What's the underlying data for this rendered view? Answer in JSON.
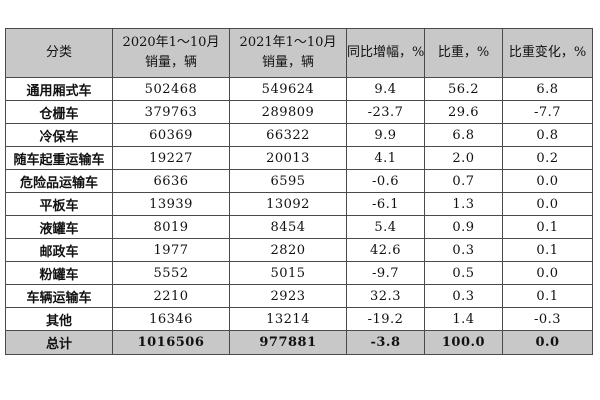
{
  "table": {
    "headers": [
      {
        "lines": [
          "分类"
        ]
      },
      {
        "lines": [
          "2020年1～10月",
          "销量，辆"
        ]
      },
      {
        "lines": [
          "2021年1～10月",
          "销量，辆"
        ]
      },
      {
        "lines": [
          "同比增幅，%"
        ]
      },
      {
        "lines": [
          "比重，%"
        ]
      },
      {
        "lines": [
          "比重变化，%"
        ]
      }
    ],
    "rows": [
      [
        "通用厢式车",
        "502468",
        "549624",
        "9.4",
        "56.2",
        "6.8"
      ],
      [
        "仓栅车",
        "379763",
        "289809",
        "-23.7",
        "29.6",
        "-7.7"
      ],
      [
        "冷保车",
        "60369",
        "66322",
        "9.9",
        "6.8",
        "0.8"
      ],
      [
        "随车起重运输车",
        "19227",
        "20013",
        "4.1",
        "2.0",
        "0.2"
      ],
      [
        "危险品运输车",
        "6636",
        "6595",
        "-0.6",
        "0.7",
        "0.0"
      ],
      [
        "平板车",
        "13939",
        "13092",
        "-6.1",
        "1.3",
        "0.0"
      ],
      [
        "液罐车",
        "8019",
        "8454",
        "5.4",
        "0.9",
        "0.1"
      ],
      [
        "邮政车",
        "1977",
        "2820",
        "42.6",
        "0.3",
        "0.1"
      ],
      [
        "粉罐车",
        "5552",
        "5015",
        "-9.7",
        "0.5",
        "0.0"
      ],
      [
        "车辆运输车",
        "2210",
        "2923",
        "32.3",
        "0.3",
        "0.1"
      ],
      [
        "其他",
        "16346",
        "13214",
        "-19.2",
        "1.4",
        "-0.3"
      ]
    ],
    "total": [
      "总计",
      "1016506",
      "977881",
      "-3.8",
      "100.0",
      "0.0"
    ]
  },
  "colors": {
    "header_bg": "#c8c8c8",
    "border": "#4a4a4a",
    "body_bg": "#ffffff"
  }
}
